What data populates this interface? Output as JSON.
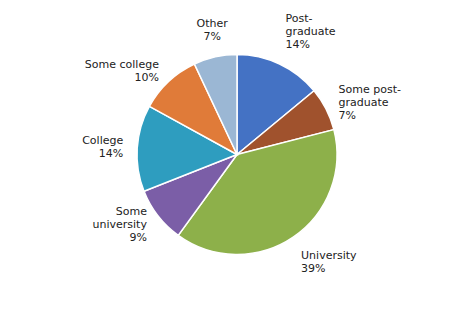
{
  "chart_data": {
    "type": "pie",
    "categories": [
      "Post-\ngraduate",
      "Some post-\ngraduate",
      "University",
      "Some\nuniversity",
      "College",
      "Some college",
      "Other"
    ],
    "values": [
      14,
      7,
      39,
      9,
      14,
      10,
      7
    ],
    "value_labels": [
      "14%",
      "7%",
      "39%",
      "9%",
      "14%",
      "10%",
      "7%"
    ],
    "data_labels": true,
    "colors": [
      "#4472C4",
      "#A0522D",
      "#8DB04A",
      "#7B5EA7",
      "#2E9DBF",
      "#E07B39",
      "#9BB7D4"
    ]
  }
}
